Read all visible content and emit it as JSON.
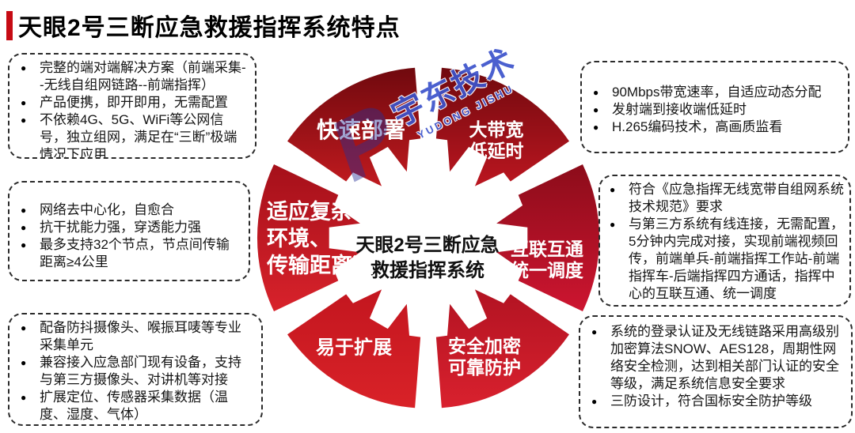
{
  "title": "天眼2号三断应急救援指挥系统特点",
  "colors": {
    "title_accent": "#c60b14",
    "wheel_red_bright": "#d9212e",
    "wheel_red_dark": "#70090e",
    "watermark_blue": "#3c53cb",
    "text_black": "#151515"
  },
  "watermark": {
    "glyph": "P",
    "brand": "宇东技术",
    "brand_sub": "YUDONG JISHU"
  },
  "wheel": {
    "center_line1": "天眼2号三断应急",
    "center_line2": "救援指挥系统",
    "segments": [
      {
        "name": "rapid-deployment",
        "lines": [
          "快速部署"
        ],
        "color_from": "#70090e",
        "color_to": "#c01a1f"
      },
      {
        "name": "high-bandwidth-low-latency",
        "lines": [
          "大带宽",
          "低延时"
        ],
        "color_from": "#70090e",
        "color_to": "#bb1620"
      },
      {
        "name": "interconnect-unified-dispatch",
        "lines": [
          "互联互通",
          "统一调度"
        ],
        "color_from": "#8c0c1a",
        "color_to": "#cd1530"
      },
      {
        "name": "secure-encryption-protection",
        "lines": [
          "安全加密",
          "可靠防护"
        ],
        "color_from": "#b21322",
        "color_to": "#d9212e"
      },
      {
        "name": "easy-expansion",
        "lines": [
          "易于扩展"
        ],
        "color_from": "#c3161f",
        "color_to": "#d92228"
      },
      {
        "name": "adapt-complex-environment",
        "lines": [
          "适应复杂",
          "环境、",
          "传输距离远"
        ],
        "color_from": "#a5101a",
        "color_to": "#d8222b"
      }
    ]
  },
  "boxes": [
    {
      "bullets": [
        "完整的端对端解决方案（前端采集--无线自组网链路--前端指挥）",
        "产品便携，即开即用，无需配置",
        "不依赖4G、5G、WiFi等公网信号，独立组网，满足在“三断”极端情况下应用"
      ]
    },
    {
      "bullets": [
        "网络去中心化，自愈合",
        "抗干扰能力强，穿透能力强",
        "最多支持32个节点，节点间传输距离≥4公里"
      ]
    },
    {
      "bullets": [
        "配备防抖摄像头、喉振耳唛等专业采集单元",
        "兼容接入应急部门现有设备，支持与第三方摄像头、对讲机等对接",
        "扩展定位、传感器采集数据（温度、湿度、气体）"
      ]
    },
    {
      "bullets": [
        "90Mbps带宽速率，自适应动态分配",
        "发射端到接收端低延时",
        "H.265编码技术，高画质监看"
      ]
    },
    {
      "bullets": [
        "符合《应急指挥无线宽带自组网系统技术规范》要求",
        "与第三方系统有线连接，无需配置，5分钟内完成对接，实现前端视频回传，前端单兵-前端指挥工作站-前端指挥车-后端指挥四方通话，指挥中心的互联互通、统一调度"
      ]
    },
    {
      "bullets": [
        "系统的登录认证及无线链路采用高级别加密算法SNOW、AES128，周期性网络安全检测，达到相关部门认证的安全等级，满足系统信息安全要求",
        "三防设计，符合国标安全防护等级"
      ]
    }
  ]
}
